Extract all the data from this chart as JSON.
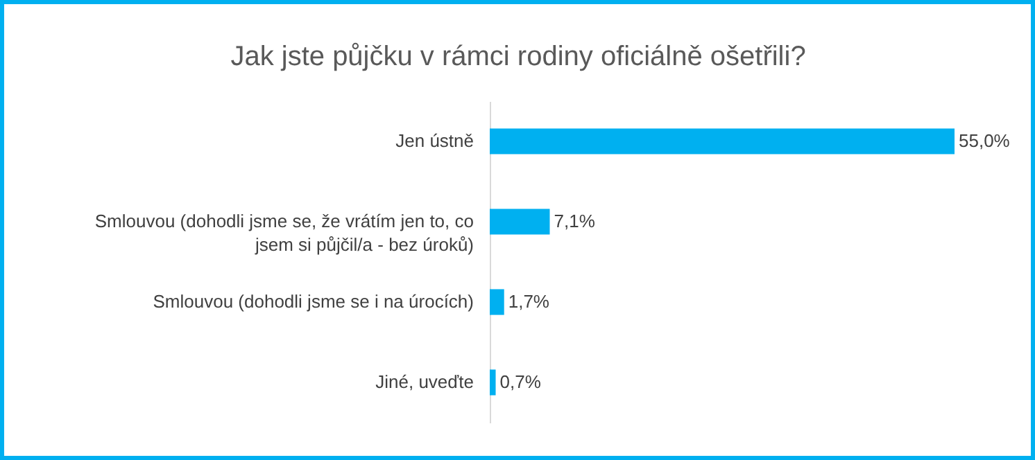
{
  "chart_data": {
    "type": "bar",
    "orientation": "horizontal",
    "title": "Jak jste půjčku v rámci rodiny oficiálně ošetřili?",
    "categories": [
      "Jen ústně",
      "Smlouvou (dohodli jsme se, že vrátím jen to, co jsem si půjčil/a - bez úroků)",
      "Smlouvou (dohodli jsme se i na úrocích)",
      "Jiné, uveďte"
    ],
    "values": [
      55.0,
      7.1,
      1.7,
      0.7
    ],
    "value_labels": [
      "55,0%",
      "7,1%",
      "1,7%",
      "0,7%"
    ],
    "color": "#00b0f0"
  }
}
